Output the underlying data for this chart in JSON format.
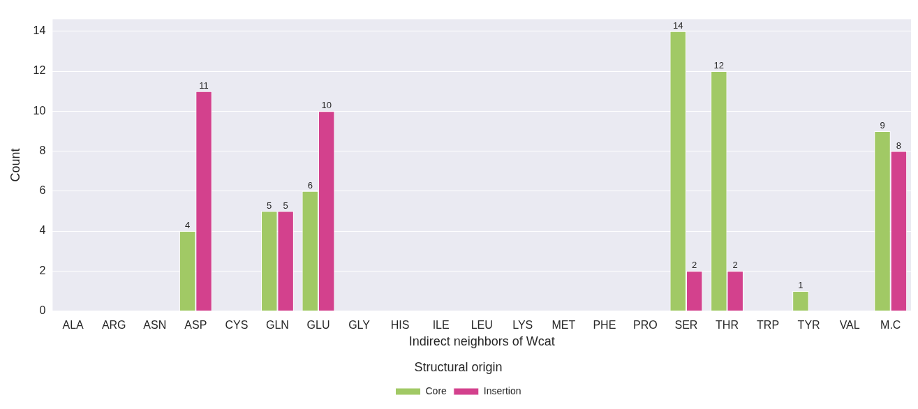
{
  "chart_data": {
    "type": "bar",
    "xlabel": "Indirect neighbors of Wcat",
    "ylabel": "Count",
    "legend_title": "Structural origin",
    "legend": "bottom",
    "grid": "y",
    "ylim": [
      0,
      14.6
    ],
    "yticks": [
      0,
      2,
      4,
      6,
      8,
      10,
      12,
      14
    ],
    "categories": [
      "ALA",
      "ARG",
      "ASN",
      "ASP",
      "CYS",
      "GLN",
      "GLU",
      "GLY",
      "HIS",
      "ILE",
      "LEU",
      "LYS",
      "MET",
      "PHE",
      "PRO",
      "SER",
      "THR",
      "TRP",
      "TYR",
      "VAL",
      "M.C"
    ],
    "series": [
      {
        "name": "Core",
        "color": "#a1c965",
        "values": [
          0,
          0,
          0,
          4,
          0,
          5,
          6,
          0,
          0,
          0,
          0,
          0,
          0,
          0,
          0,
          14,
          12,
          0,
          1,
          0,
          9
        ],
        "value_labels": [
          null,
          null,
          null,
          "4",
          null,
          "5",
          "6",
          null,
          null,
          null,
          null,
          null,
          null,
          null,
          null,
          "14",
          "12",
          null,
          "1",
          null,
          "9"
        ]
      },
      {
        "name": "Insertion",
        "color": "#d3418d",
        "values": [
          0,
          0,
          0,
          11,
          0,
          5,
          10,
          0,
          0,
          0,
          0,
          0,
          0,
          0,
          0,
          2,
          2,
          0,
          0,
          0,
          8
        ],
        "value_labels": [
          null,
          null,
          null,
          "11",
          null,
          "5",
          "10",
          null,
          null,
          null,
          null,
          null,
          null,
          null,
          null,
          "2",
          "2",
          null,
          null,
          null,
          "8"
        ]
      }
    ]
  }
}
